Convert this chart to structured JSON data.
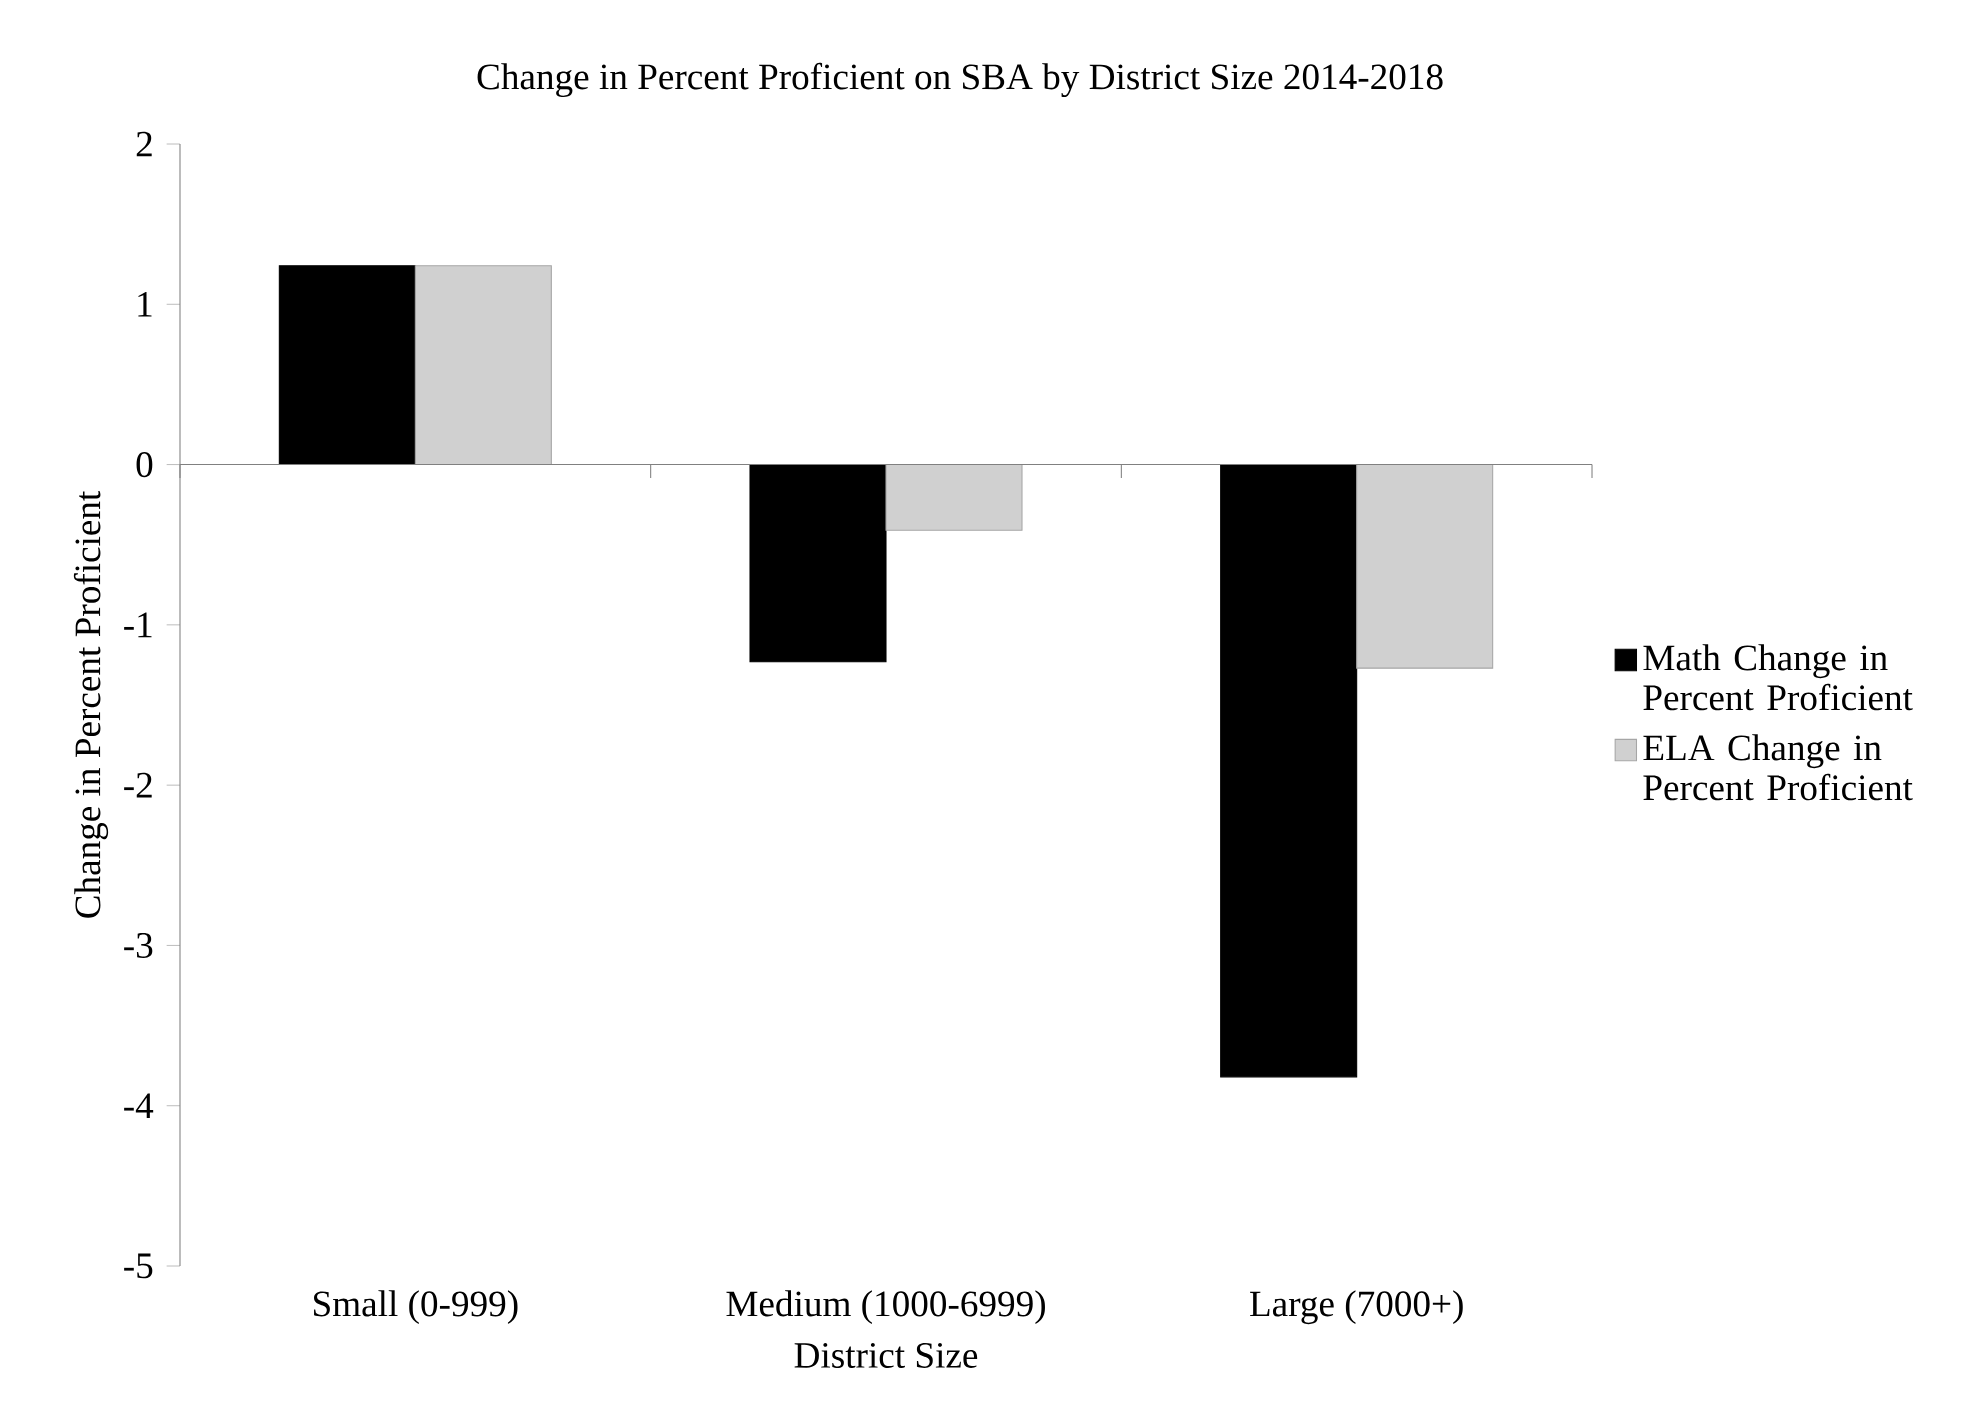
{
  "chart_data": {
    "type": "bar",
    "title": "Change in Percent Proficient on SBA by District Size 2014-2018",
    "xlabel": "District Size",
    "ylabel": "Change in Percent Proficient",
    "categories": [
      "Small (0-999)",
      "Medium (1000-6999)",
      "Large (7000+)"
    ],
    "series": [
      {
        "name": "Math Change in Percent Proficient",
        "color": "#000000",
        "values": [
          1.24,
          -1.23,
          -3.82
        ]
      },
      {
        "name": "ELA Change in Percent Proficient",
        "color": "#d0d0d0",
        "values": [
          1.24,
          -0.41,
          -1.27
        ]
      }
    ],
    "ylim": [
      -5,
      2
    ],
    "yticks": [
      -5,
      -4,
      -3,
      -2,
      -1,
      0,
      1,
      2
    ],
    "legend": "right"
  }
}
